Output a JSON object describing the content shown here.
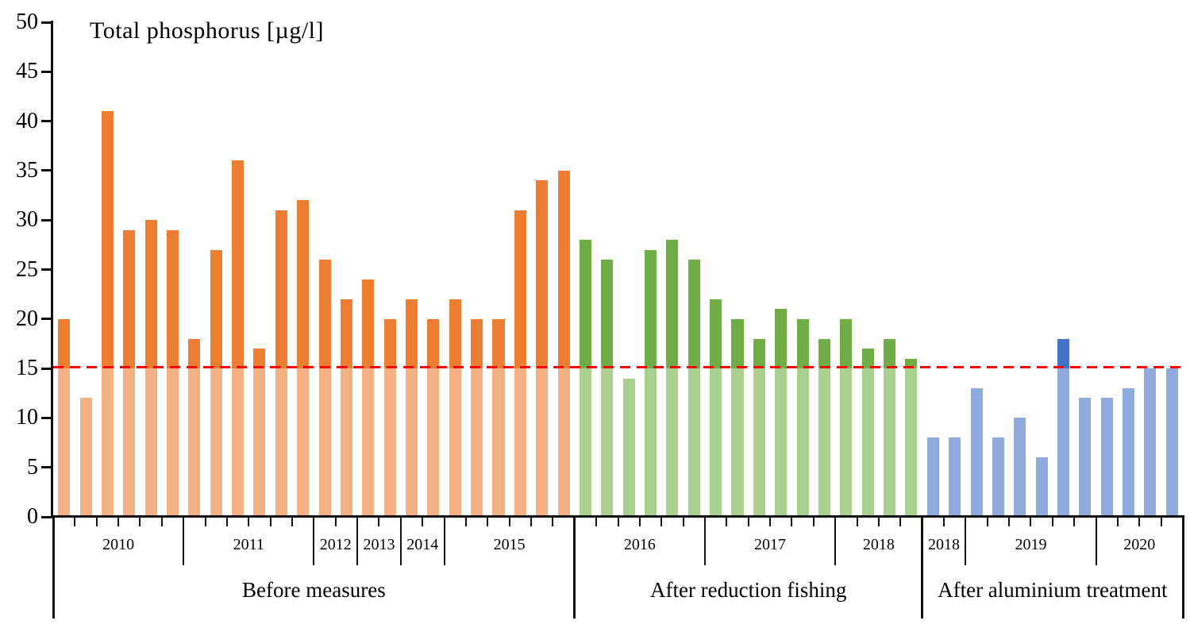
{
  "chart_data": {
    "type": "bar",
    "title": "Total phosphorus [µg/l]",
    "ylabel": "Total phosphorus [µg/l]",
    "ylim": [
      0,
      50
    ],
    "ytick_step": 5,
    "ytick_labels": [
      "0",
      "5",
      "10",
      "15",
      "20",
      "25",
      "30",
      "35",
      "40",
      "45",
      "50"
    ],
    "grid": false,
    "legend": false,
    "threshold": {
      "value": 15,
      "color": "#FF0000",
      "style": "dashed"
    },
    "shading_rule": {
      "light_below": 15,
      "dark_above": 15
    },
    "sections": [
      {
        "label": "Before measures",
        "color_dark": "#ED7D31",
        "color_light": "#F4B183",
        "groups": [
          {
            "year": "2010",
            "values": [
              20,
              12,
              41,
              29,
              30,
              29
            ]
          },
          {
            "year": "2011",
            "values": [
              18,
              27,
              36,
              17,
              31,
              32
            ]
          },
          {
            "year": "2012",
            "values": [
              26,
              22
            ]
          },
          {
            "year": "2013",
            "values": [
              24,
              20
            ]
          },
          {
            "year": "2014",
            "values": [
              22,
              20
            ]
          },
          {
            "year": "2015",
            "values": [
              22,
              20,
              20,
              31,
              34,
              35
            ]
          }
        ]
      },
      {
        "label": "After reduction fishing",
        "color_dark": "#70AD47",
        "color_light": "#A9D08E",
        "groups": [
          {
            "year": "2016",
            "values": [
              28,
              26,
              14,
              27,
              28,
              26
            ]
          },
          {
            "year": "2017",
            "values": [
              22,
              20,
              18,
              21,
              20,
              18
            ]
          },
          {
            "year": "2018",
            "values": [
              20,
              17,
              18,
              16
            ]
          }
        ]
      },
      {
        "label": "After aluminium treatment",
        "color_dark": "#4472C4",
        "color_light": "#8FAADC",
        "groups": [
          {
            "year": "2018",
            "values": [
              8,
              8
            ]
          },
          {
            "year": "2019",
            "values": [
              13,
              8,
              10,
              6,
              18,
              12
            ]
          },
          {
            "year": "2020",
            "values": [
              12,
              13,
              15,
              15
            ]
          }
        ]
      }
    ]
  }
}
